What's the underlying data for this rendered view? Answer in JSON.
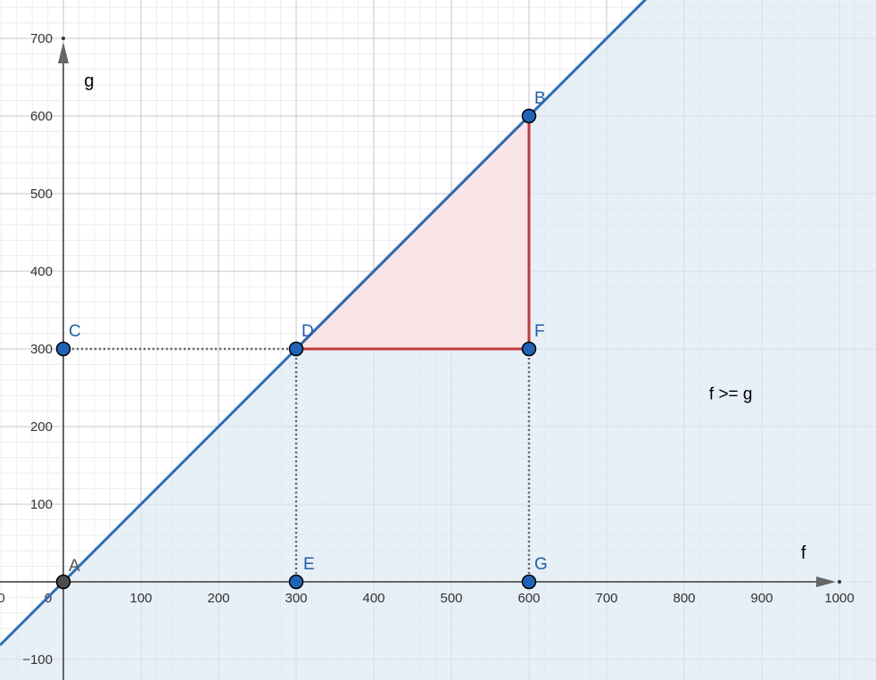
{
  "chart_data": {
    "type": "line",
    "title": "",
    "xlabel": "f",
    "ylabel": "g",
    "xlim": [
      -80,
      1050
    ],
    "ylim": [
      -125,
      750
    ],
    "grid": true,
    "x_ticks": [
      0,
      100,
      200,
      300,
      400,
      500,
      600,
      700,
      800,
      900,
      1000
    ],
    "y_ticks": [
      -100,
      100,
      200,
      300,
      400,
      500,
      600,
      700
    ],
    "x_tick_labels": [
      "0",
      "100",
      "200",
      "300",
      "400",
      "500",
      "600",
      "700",
      "800",
      "900",
      "1000"
    ],
    "y_tick_labels": [
      "−100",
      "100",
      "200",
      "300",
      "400",
      "500",
      "600",
      "700"
    ],
    "origin_labels": [
      "0",
      "0"
    ],
    "colors": {
      "line": "#2f6db5",
      "region_fill": "#dde8f4",
      "triangle_edge": "#c0393f",
      "triangle_fill": "#fbe3e3",
      "point_fill": "#1f63b7",
      "point_label": "#1f5fa8",
      "axis": "#666666",
      "guide": "#666666"
    },
    "line": {
      "slope": 1,
      "intercept": 0
    },
    "region": {
      "inequality": "f >= g",
      "label": "f >= g",
      "label_at": [
        860,
        235
      ]
    },
    "points": [
      {
        "name": "A",
        "x": 0,
        "y": 0
      },
      {
        "name": "B",
        "x": 600,
        "y": 600
      },
      {
        "name": "C",
        "x": 0,
        "y": 300
      },
      {
        "name": "D",
        "x": 300,
        "y": 300
      },
      {
        "name": "E",
        "x": 300,
        "y": 0
      },
      {
        "name": "F",
        "x": 600,
        "y": 300
      },
      {
        "name": "G",
        "x": 600,
        "y": 0
      }
    ],
    "triangle": [
      "D",
      "B",
      "F"
    ],
    "dotted_segments": [
      [
        "C",
        "D"
      ],
      [
        "D",
        "E"
      ],
      [
        "F",
        "G"
      ]
    ]
  }
}
